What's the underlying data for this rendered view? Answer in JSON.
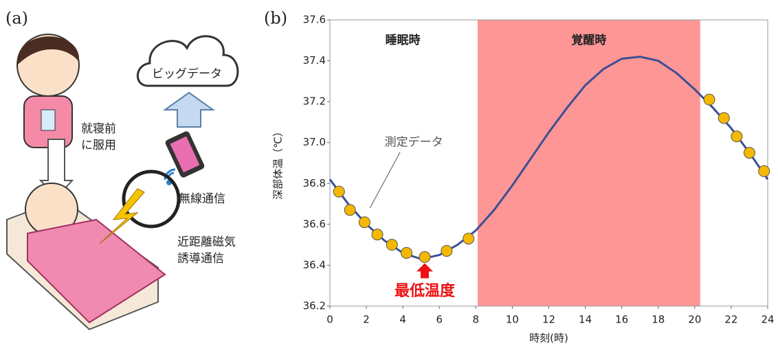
{
  "panel_a": {
    "label": "(a)",
    "cloud_text": "ビッグデータ",
    "before_sleep": [
      "就寝前",
      "に服用"
    ],
    "wireless": "無線通信",
    "nfc": [
      "近距離磁気",
      "誘導通信"
    ]
  },
  "panel_b_label": "(b)",
  "chart_data": {
    "type": "line",
    "xlabel": "時刻(時)",
    "ylabel": "深部体温（℃）",
    "xlim": [
      0,
      24
    ],
    "xticks": [
      0,
      2,
      4,
      6,
      8,
      10,
      12,
      14,
      16,
      18,
      20,
      22,
      24
    ],
    "ylim": [
      36.2,
      37.6
    ],
    "yticks": [
      36.2,
      36.4,
      36.6,
      36.8,
      {
        "value": 37,
        "label": "37.0"
      },
      37.2,
      37.4,
      37.6
    ],
    "shaded_region": {
      "x": [
        8.1,
        20.3
      ],
      "color": "#ff9696"
    },
    "region_labels": [
      {
        "text": "睡眠時",
        "x": 4,
        "y": 37.5
      },
      {
        "text": "覚醒時",
        "x": 14.2,
        "y": 37.5
      }
    ],
    "annotations": [
      {
        "text": "測定データ",
        "x": 4.6,
        "y": 37.0,
        "arrow_to": [
          2.2,
          36.68
        ]
      },
      {
        "text": "最低温度",
        "x": 5.2,
        "y": 36.27,
        "color": "#ee1111",
        "arrow_to": [
          5.2,
          36.41
        ]
      }
    ],
    "series": [
      {
        "color": "#3b4f94",
        "x": [
          0,
          1,
          2,
          3,
          4,
          5,
          6,
          7,
          8,
          9,
          10,
          11,
          12,
          13,
          14,
          15,
          16,
          17,
          18,
          19,
          20,
          21,
          22,
          23,
          24
        ],
        "values": [
          36.82,
          36.7,
          36.6,
          36.52,
          36.46,
          36.43,
          36.45,
          36.5,
          36.57,
          36.67,
          36.79,
          36.92,
          37.05,
          37.17,
          37.28,
          37.36,
          37.41,
          37.42,
          37.4,
          37.34,
          37.26,
          37.17,
          37.07,
          36.95,
          36.82
        ]
      },
      {
        "color": "#f5b800",
        "markers_only": true,
        "x": [
          0.5,
          1.1,
          1.9,
          2.6,
          3.4,
          4.2,
          5.2,
          6.4,
          7.6,
          20.8,
          21.6,
          22.3,
          23.0,
          23.8
        ],
        "values": [
          36.76,
          36.67,
          36.61,
          36.55,
          36.5,
          36.46,
          36.44,
          36.47,
          36.53,
          37.21,
          37.12,
          37.03,
          36.95,
          36.86
        ]
      }
    ]
  }
}
